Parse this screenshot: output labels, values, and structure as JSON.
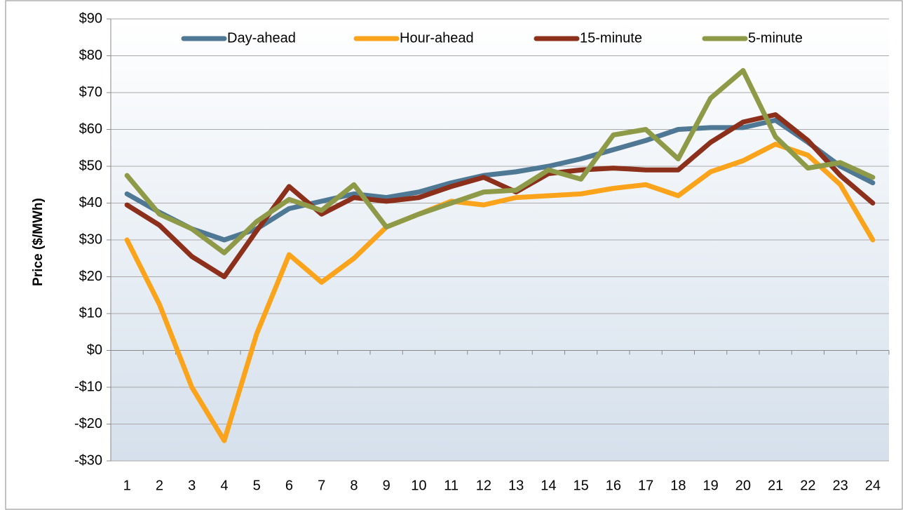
{
  "chart_data": {
    "type": "line",
    "y_label": "Price ($/MWh)",
    "categories": [
      "1",
      "2",
      "3",
      "4",
      "5",
      "6",
      "7",
      "8",
      "9",
      "10",
      "11",
      "12",
      "13",
      "14",
      "15",
      "16",
      "17",
      "18",
      "19",
      "20",
      "21",
      "22",
      "23",
      "24"
    ],
    "series": [
      {
        "name": "Day-ahead",
        "color": "#4e7893",
        "values": [
          42.5,
          37.5,
          33,
          30,
          33,
          38.5,
          40.5,
          42.5,
          41.5,
          43,
          45.5,
          47.5,
          48.5,
          50,
          52,
          54.5,
          57,
          60,
          60.5,
          60.5,
          62.5,
          56.5,
          50,
          45.5
        ]
      },
      {
        "name": "Hour-ahead",
        "color": "#fba31a",
        "values": [
          30,
          12.5,
          -10,
          -24.5,
          4.5,
          26,
          18.5,
          25,
          33.5,
          37,
          40.5,
          39.5,
          41.5,
          42,
          42.5,
          44,
          45,
          42,
          48.5,
          51.5,
          56,
          53,
          45,
          30
        ]
      },
      {
        "name": "15-minute",
        "color": "#8c2f1b",
        "values": [
          39.5,
          34,
          25.5,
          20,
          32.5,
          44.5,
          37,
          41.5,
          40.5,
          41.5,
          44.5,
          47,
          43,
          48,
          49,
          49.5,
          49,
          49,
          56.5,
          62,
          64,
          57,
          47.5,
          40
        ]
      },
      {
        "name": "5-minute",
        "color": "#8e9a47",
        "values": [
          47.5,
          37,
          33,
          26.5,
          35,
          41,
          38,
          45,
          33.5,
          37,
          40,
          43,
          43.5,
          49,
          46.5,
          58.5,
          60,
          52,
          68.5,
          76,
          58,
          49.5,
          51,
          47
        ]
      }
    ],
    "ylim": [
      -30,
      90
    ],
    "yticks": [
      {
        "value": -30,
        "label": "-$30"
      },
      {
        "value": -20,
        "label": "-$20"
      },
      {
        "value": -10,
        "label": "-$10"
      },
      {
        "value": 0,
        "label": "$0"
      },
      {
        "value": 10,
        "label": "$10"
      },
      {
        "value": 20,
        "label": "$20"
      },
      {
        "value": 30,
        "label": "$30"
      },
      {
        "value": 40,
        "label": "$40"
      },
      {
        "value": 50,
        "label": "$50"
      },
      {
        "value": 60,
        "label": "$60"
      },
      {
        "value": 70,
        "label": "$70"
      },
      {
        "value": 80,
        "label": "$80"
      },
      {
        "value": 90,
        "label": "$90"
      }
    ],
    "grid": true,
    "legend": "top"
  }
}
